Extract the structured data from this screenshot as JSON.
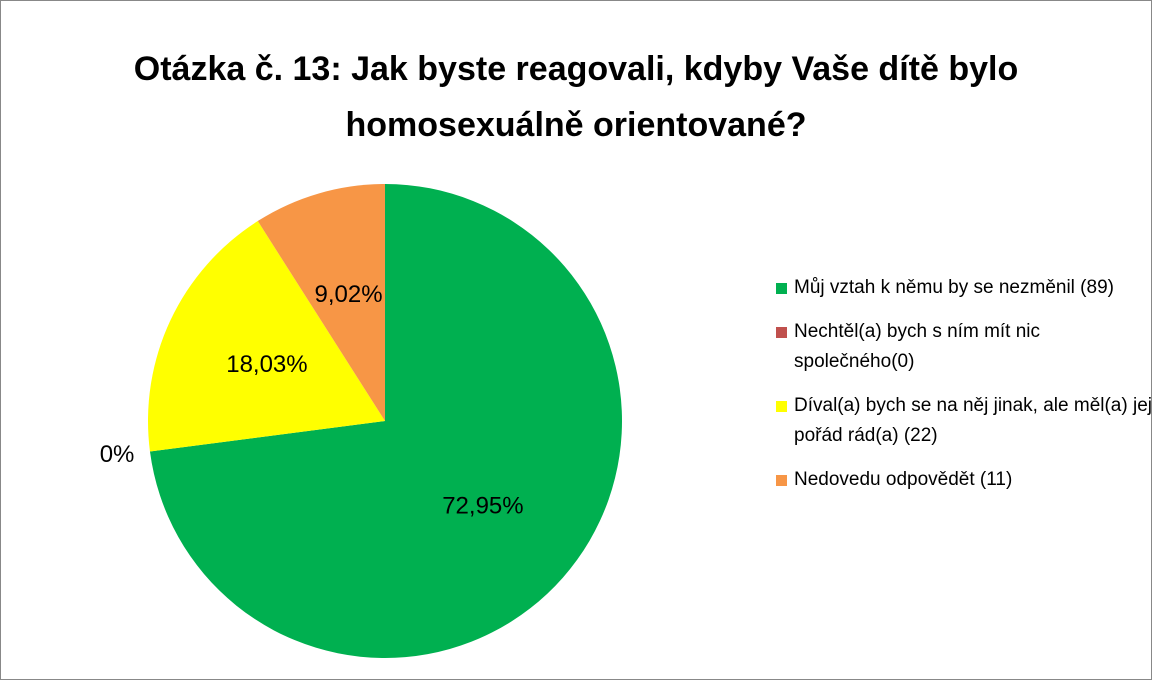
{
  "chart_data": {
    "type": "pie",
    "title": "Otázka č. 13: Jak byste reagovali, kdyby Vaše dítě bylo homosexuálně orientované?",
    "categories": [
      "Můj vztah k němu by se nezměnil (89)",
      "Nechtěl(a) bych s ním mít nic společného(0)",
      "Díval(a) bych se na něj jinak, ale měl(a) jej pořád rád(a) (22)",
      "Nedovedu odpovědět (11)"
    ],
    "values": [
      72.95,
      0,
      18.03,
      9.02
    ],
    "value_labels": [
      "72,95%",
      "0%",
      "18,03%",
      "9,02%"
    ],
    "colors": [
      "#00b050",
      "#c0504d",
      "#ffff00",
      "#f79646"
    ],
    "legend": "right"
  }
}
